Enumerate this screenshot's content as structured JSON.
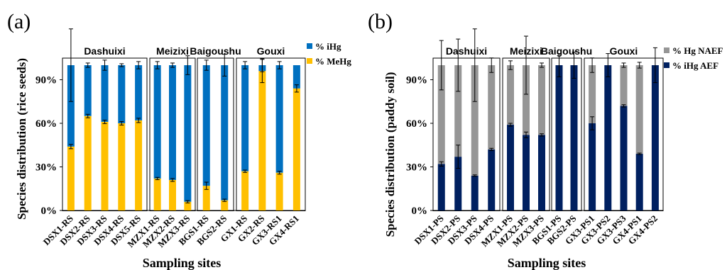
{
  "chart_data": [
    {
      "panel_label": "(a)",
      "type": "bar",
      "stacked": true,
      "ylabel": "Species distribution (rice seeds)",
      "xlabel": "Sampling sites",
      "ylim": [
        0,
        100
      ],
      "y_ticks": [
        "0%",
        "30%",
        "60%",
        "90%"
      ],
      "categories": [
        "DSX1-RS",
        "DSX2-RS",
        "DSX3-RS",
        "DSX4-RS",
        "DSX5-RS",
        "MZX1-RS",
        "MZX2-RS",
        "MZX3-RS",
        "BGS1-RS",
        "BGS2-RS",
        "GX1-RS",
        "GX2-RS",
        "GX3-RS1",
        "GX4-RS1"
      ],
      "groups": [
        {
          "name": "Dashuixi",
          "start": 0,
          "end": 4
        },
        {
          "name": "Meizixi",
          "start": 5,
          "end": 7
        },
        {
          "name": "Baigoushu",
          "start": 8,
          "end": 9
        },
        {
          "name": "Gouxi",
          "start": 10,
          "end": 13
        }
      ],
      "legend": [
        "% iHg",
        "% MeHg"
      ],
      "legend_position": "top-right",
      "series": [
        {
          "name": "% MeHg",
          "color": "#FFC000",
          "values": [
            44,
            65,
            61,
            60,
            62,
            22,
            21,
            6,
            17,
            7,
            27,
            96,
            26,
            84
          ],
          "err": [
            1.5,
            1.2,
            1.2,
            1.2,
            1.5,
            0.8,
            1.0,
            0.8,
            2.5,
            0.8,
            0.8,
            8,
            1.0,
            2.5
          ]
        },
        {
          "name": "% iHg",
          "color": "#0070C0",
          "values": [
            56,
            35,
            39,
            40,
            38,
            78,
            79,
            94,
            83,
            93,
            73,
            4,
            74,
            16
          ],
          "err": [
            25,
            1.5,
            3.5,
            1.0,
            2.5,
            2.5,
            1.5,
            6.5,
            3.5,
            7.5,
            2.5,
            4.5,
            2.5,
            0
          ]
        }
      ]
    },
    {
      "panel_label": "(b)",
      "type": "bar",
      "stacked": true,
      "ylabel": "Species distribution (paddy soil)",
      "xlabel": "Sampling sites",
      "ylim": [
        0,
        100
      ],
      "y_ticks": [
        "0%",
        "30%",
        "60%",
        "90%"
      ],
      "categories": [
        "DSX1-PS",
        "DSX2-PS",
        "DSX3-PS",
        "DSX4-PS",
        "MZX1-PS",
        "MZX2-PS",
        "MZX3-PS",
        "BGS1-PS",
        "BGS2-PS",
        "GX3-PS1",
        "GX3-PS2",
        "GX3-PS3",
        "GX4-PS1",
        "GX4-PS2"
      ],
      "groups": [
        {
          "name": "Dashuixi",
          "start": 0,
          "end": 3
        },
        {
          "name": "Meizixi",
          "start": 4,
          "end": 6
        },
        {
          "name": "Baigoushu",
          "start": 7,
          "end": 8
        },
        {
          "name": "Gouxi",
          "start": 9,
          "end": 13
        }
      ],
      "legend": [
        "% Hg NAEF",
        "% iHg AEF"
      ],
      "legend_position": "top-right",
      "series": [
        {
          "name": "% iHg AEF",
          "color": "#002060",
          "values": [
            32,
            37,
            24,
            42,
            59,
            52,
            52,
            100,
            100,
            60,
            100,
            72,
            39,
            100
          ],
          "err": [
            1.5,
            8,
            0.5,
            0.8,
            1.0,
            2.0,
            0.8,
            0,
            0,
            4.5,
            0,
            0.8,
            0.5,
            0
          ]
        },
        {
          "name": "% Hg NAEF",
          "color": "#969696",
          "values": [
            68,
            63,
            76,
            58,
            41,
            48,
            48,
            0,
            0,
            40,
            0,
            28,
            61,
            0
          ],
          "err": [
            17,
            18,
            25,
            5,
            3,
            20,
            1.5,
            8,
            9,
            5,
            8,
            1.5,
            2,
            12
          ]
        }
      ]
    }
  ]
}
